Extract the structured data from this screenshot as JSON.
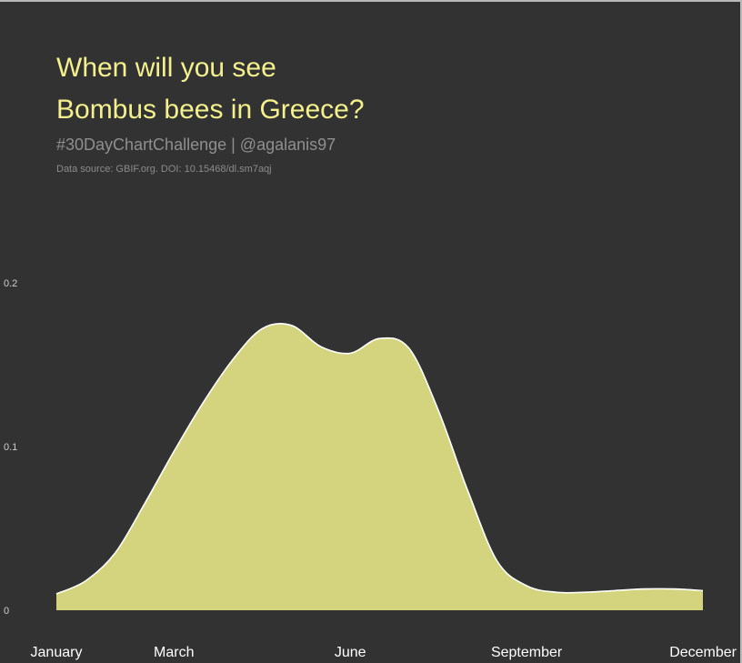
{
  "title_line1": "When will you see",
  "title_line2": "Bombus bees in Greece?",
  "subtitle": "#30DayChartChallenge | @agalanis97",
  "caption": "Data source: GBIF.org. DOI: 10.15468/dl.sm7aqj",
  "colors": {
    "background": "#323232",
    "title": "#f4f08e",
    "fill": "#d4d47e",
    "outline": "#ffffff"
  },
  "chart_data": {
    "type": "area",
    "title": "When will you see Bombus bees in Greece?",
    "xlabel": "",
    "ylabel": "",
    "xlim": [
      1,
      12
    ],
    "ylim": [
      0,
      0.2
    ],
    "grid": false,
    "legend": "none",
    "x_ticks": [
      {
        "value": 1,
        "label": "January"
      },
      {
        "value": 3,
        "label": "March"
      },
      {
        "value": 6,
        "label": "June"
      },
      {
        "value": 9,
        "label": "September"
      },
      {
        "value": 12,
        "label": "December"
      }
    ],
    "y_ticks": [
      {
        "value": 0,
        "label": "0"
      },
      {
        "value": 0.1,
        "label": "0.1"
      },
      {
        "value": 0.2,
        "label": "0.2"
      }
    ],
    "series": [
      {
        "x": [
          1,
          1.5,
          2,
          2.5,
          3,
          3.5,
          4,
          4.5,
          5,
          5.5,
          6,
          6.5,
          7,
          7.5,
          8,
          8.5,
          9,
          9.5,
          10,
          10.5,
          11,
          11.5,
          12
        ],
        "y": [
          0.01,
          0.018,
          0.035,
          0.065,
          0.097,
          0.127,
          0.153,
          0.172,
          0.174,
          0.161,
          0.157,
          0.166,
          0.16,
          0.122,
          0.073,
          0.03,
          0.015,
          0.011,
          0.011,
          0.012,
          0.013,
          0.013,
          0.012
        ]
      }
    ]
  }
}
